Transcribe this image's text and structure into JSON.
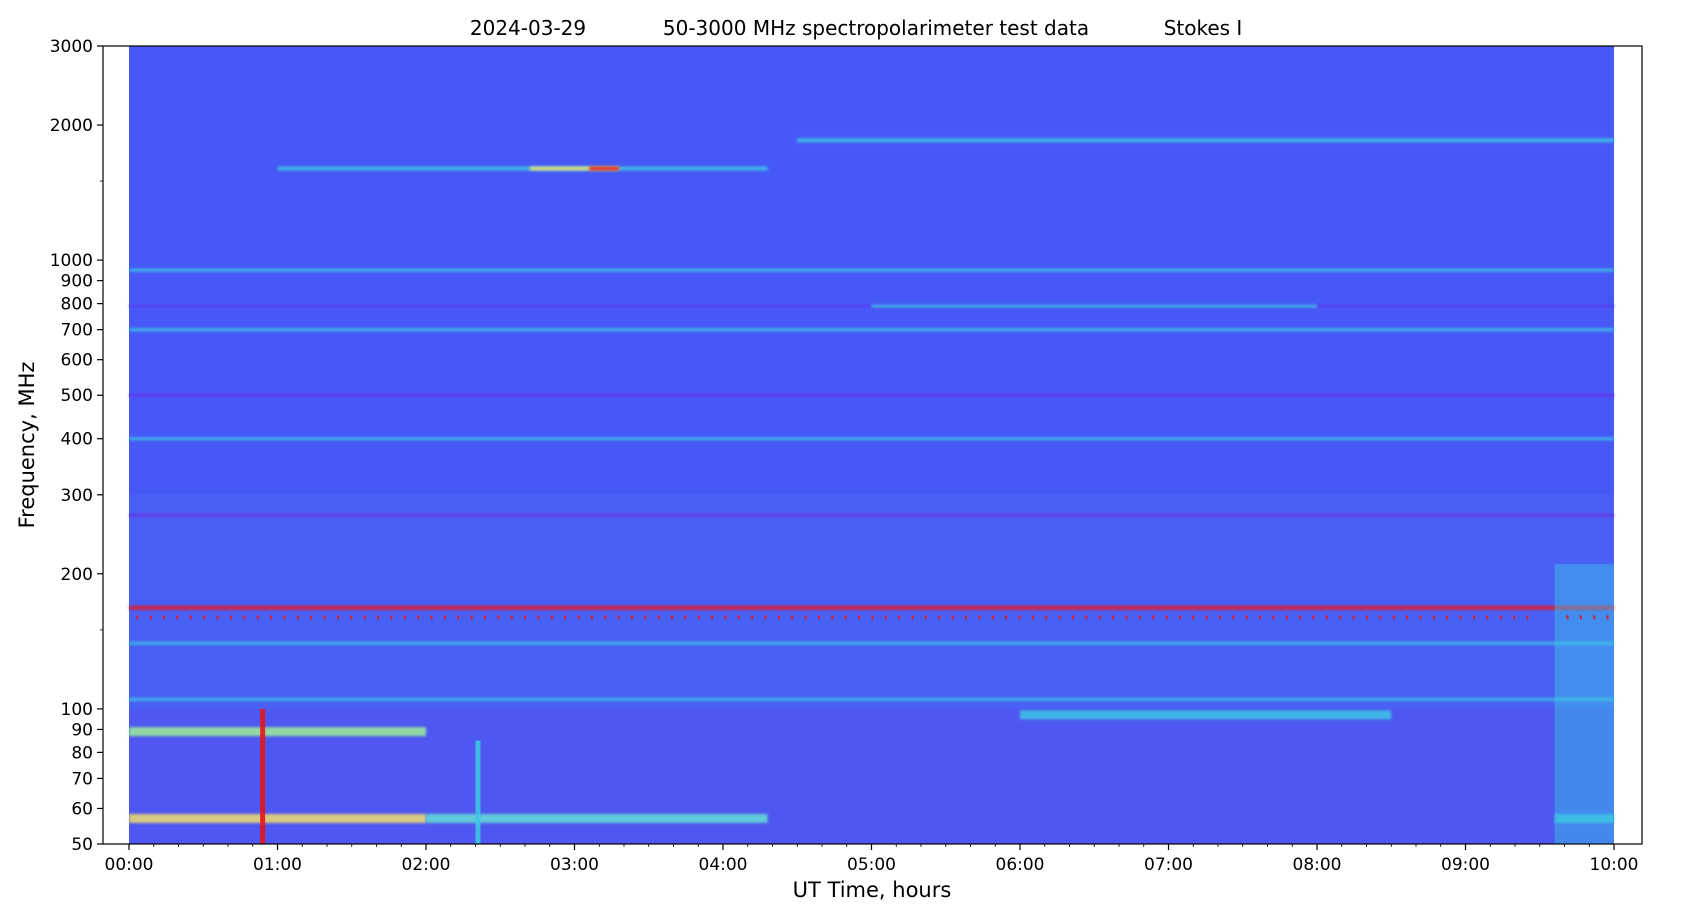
{
  "chart_data": {
    "type": "heatmap",
    "title": {
      "date": "2024-03-29",
      "description": "50-3000 MHz spectropolarimeter test data",
      "parameter": "Stokes I"
    },
    "xlabel": "UT Time, hours",
    "ylabel": "Frequency, MHz",
    "x_range_hours": [
      0,
      10
    ],
    "data_extent_hours": [
      0,
      10
    ],
    "x_ticks": [
      {
        "value": 0,
        "label": "00:00"
      },
      {
        "value": 1,
        "label": "01:00"
      },
      {
        "value": 2,
        "label": "02:00"
      },
      {
        "value": 3,
        "label": "03:00"
      },
      {
        "value": 4,
        "label": "04:00"
      },
      {
        "value": 5,
        "label": "05:00"
      },
      {
        "value": 6,
        "label": "06:00"
      },
      {
        "value": 7,
        "label": "07:00"
      },
      {
        "value": 8,
        "label": "08:00"
      },
      {
        "value": 9,
        "label": "09:00"
      },
      {
        "value": 10,
        "label": "10:00"
      }
    ],
    "y_scale": "log",
    "y_range_mhz": [
      50,
      3000
    ],
    "y_ticks": [
      {
        "value": 50,
        "label": "50"
      },
      {
        "value": 60,
        "label": "60"
      },
      {
        "value": 70,
        "label": "70"
      },
      {
        "value": 80,
        "label": "80"
      },
      {
        "value": 90,
        "label": "90"
      },
      {
        "value": 100,
        "label": "100"
      },
      {
        "value": 200,
        "label": "200"
      },
      {
        "value": 300,
        "label": "300"
      },
      {
        "value": 400,
        "label": "400"
      },
      {
        "value": 500,
        "label": "500"
      },
      {
        "value": 600,
        "label": "600"
      },
      {
        "value": 700,
        "label": "700"
      },
      {
        "value": 800,
        "label": "800"
      },
      {
        "value": 900,
        "label": "900"
      },
      {
        "value": 1000,
        "label": "1000"
      },
      {
        "value": 2000,
        "label": "2000"
      },
      {
        "value": 3000,
        "label": "3000"
      }
    ],
    "y_minor_ticks": [
      150,
      1500
    ],
    "colormap": "rainbow",
    "colors": {
      "background": "#4659f7",
      "deep": "#5a3ef0",
      "violet": "#6a2fe8",
      "cyan": "#3cc6e6",
      "light_cyan": "#66e0d8",
      "green": "#9ef09a",
      "yellow": "#f0e070",
      "red": "#e8141a"
    },
    "features": [
      {
        "kind": "band",
        "freq_mhz": 1600,
        "t_start": 1.0,
        "t_end": 4.3,
        "color": "cyan"
      },
      {
        "kind": "band",
        "freq_mhz": 1600,
        "t_start": 2.7,
        "t_end": 3.3,
        "color": "yellow"
      },
      {
        "kind": "band",
        "freq_mhz": 1600,
        "t_start": 3.1,
        "t_end": 3.3,
        "color": "red"
      },
      {
        "kind": "band",
        "freq_mhz": 1850,
        "t_start": 4.5,
        "t_end": 10.0,
        "color": "cyan"
      },
      {
        "kind": "band",
        "freq_mhz": 950,
        "t_start": 0.0,
        "t_end": 10.0,
        "color": "cyan"
      },
      {
        "kind": "band",
        "freq_mhz": 790,
        "t_start": 0.0,
        "t_end": 10.0,
        "color": "deep"
      },
      {
        "kind": "band",
        "freq_mhz": 790,
        "t_start": 5.0,
        "t_end": 8.0,
        "color": "cyan"
      },
      {
        "kind": "band",
        "freq_mhz": 700,
        "t_start": 0.0,
        "t_end": 10.0,
        "color": "cyan"
      },
      {
        "kind": "band",
        "freq_mhz": 500,
        "t_start": 0.0,
        "t_end": 10.0,
        "color": "violet"
      },
      {
        "kind": "band",
        "freq_mhz": 400,
        "t_start": 0.0,
        "t_end": 10.0,
        "color": "cyan"
      },
      {
        "kind": "band",
        "freq_mhz": 270,
        "t_start": 0.0,
        "t_end": 10.0,
        "color": "violet"
      },
      {
        "kind": "band",
        "freq_mhz": 168,
        "t_start": 0.0,
        "t_end": 10.0,
        "color": "red"
      },
      {
        "kind": "band",
        "freq_mhz": 140,
        "t_start": 0.0,
        "t_end": 10.0,
        "color": "cyan"
      },
      {
        "kind": "band",
        "freq_mhz": 105,
        "t_start": 0.0,
        "t_end": 10.0,
        "color": "cyan"
      },
      {
        "kind": "band",
        "freq_mhz": 97,
        "t_start": 6.0,
        "t_end": 8.5,
        "color": "cyan"
      },
      {
        "kind": "band",
        "freq_mhz": 89,
        "t_start": 0.0,
        "t_end": 2.0,
        "color": "green"
      },
      {
        "kind": "band",
        "freq_mhz": 57,
        "t_start": 0.0,
        "t_end": 2.0,
        "color": "yellow"
      },
      {
        "kind": "band",
        "freq_mhz": 57,
        "t_start": 2.0,
        "t_end": 4.3,
        "color": "light_cyan"
      },
      {
        "kind": "band",
        "freq_mhz": 57,
        "t_start": 9.6,
        "t_end": 10.0,
        "color": "cyan"
      },
      {
        "kind": "burst",
        "t": 0.9,
        "f_low_mhz": 50,
        "f_high_mhz": 100,
        "color": "red"
      },
      {
        "kind": "burst",
        "t": 2.35,
        "f_low_mhz": 50,
        "f_high_mhz": 85,
        "color": "cyan"
      },
      {
        "kind": "burst",
        "t": 9.6,
        "f_low_mhz": 50,
        "f_high_mhz": 210,
        "color": "cyan"
      }
    ]
  }
}
